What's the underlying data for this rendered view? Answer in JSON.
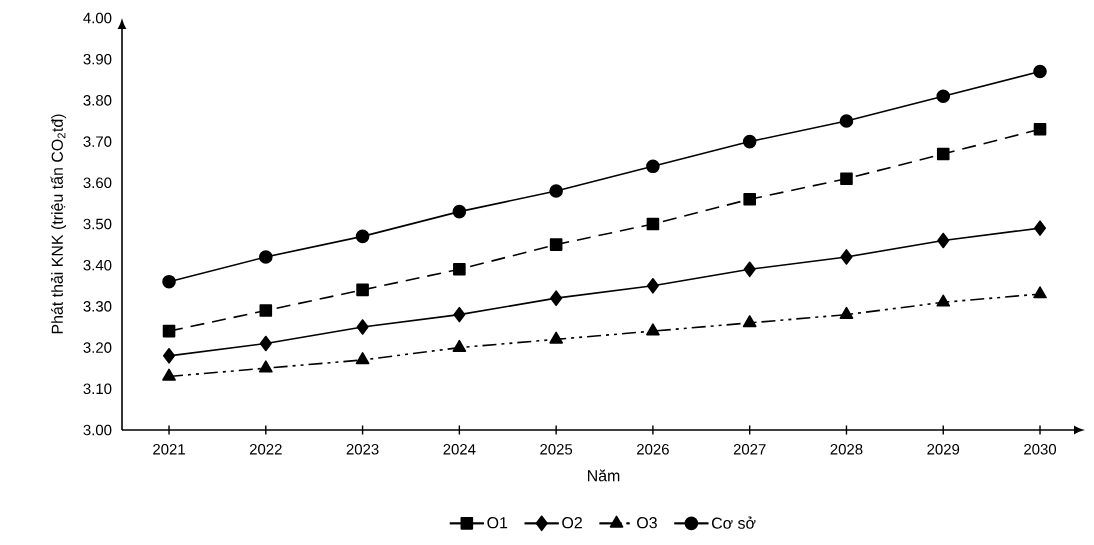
{
  "chart_data": {
    "type": "line",
    "xlabel": "Năm",
    "ylabel": "Phát thải KNK (triệu tấn CO$_{2}$tđ)",
    "categories": [
      "2021",
      "2022",
      "2023",
      "2024",
      "2025",
      "2026",
      "2027",
      "2028",
      "2029",
      "2030"
    ],
    "series": [
      {
        "name": "O1",
        "color": "#000000",
        "marker": "square",
        "line_style": "dashed",
        "values": [
          3.24,
          3.29,
          3.34,
          3.39,
          3.45,
          3.5,
          3.56,
          3.61,
          3.67,
          3.73
        ]
      },
      {
        "name": "O2",
        "color": "#000000",
        "marker": "diamond",
        "line_style": "solid",
        "values": [
          3.18,
          3.21,
          3.25,
          3.28,
          3.32,
          3.35,
          3.39,
          3.42,
          3.46,
          3.49
        ]
      },
      {
        "name": "O3",
        "color": "#000000",
        "marker": "triangle",
        "line_style": "dashdot",
        "values": [
          3.13,
          3.15,
          3.17,
          3.2,
          3.22,
          3.24,
          3.26,
          3.28,
          3.31,
          3.33
        ]
      },
      {
        "name": "Cơ sở",
        "color": "#000000",
        "marker": "circle",
        "line_style": "solid",
        "values": [
          3.36,
          3.42,
          3.47,
          3.53,
          3.58,
          3.64,
          3.7,
          3.75,
          3.81,
          3.87
        ]
      }
    ],
    "ylim": [
      3,
      4
    ],
    "yticks": [
      {
        "value": 3,
        "label": "3.00"
      },
      {
        "value": 3.1,
        "label": "3.10"
      },
      {
        "value": 3.2,
        "label": "3.20"
      },
      {
        "value": 3.3,
        "label": "3.30"
      },
      {
        "value": 3.4,
        "label": "3.40"
      },
      {
        "value": 3.5,
        "label": "3.50"
      },
      {
        "value": 3.6,
        "label": "3.60"
      },
      {
        "value": 3.7,
        "label": "3.70"
      },
      {
        "value": 3.8,
        "label": "3.80"
      },
      {
        "value": 3.9,
        "label": "3.90"
      },
      {
        "value": 4,
        "label": "4.00"
      }
    ],
    "legend": "bottom",
    "grid": false
  }
}
